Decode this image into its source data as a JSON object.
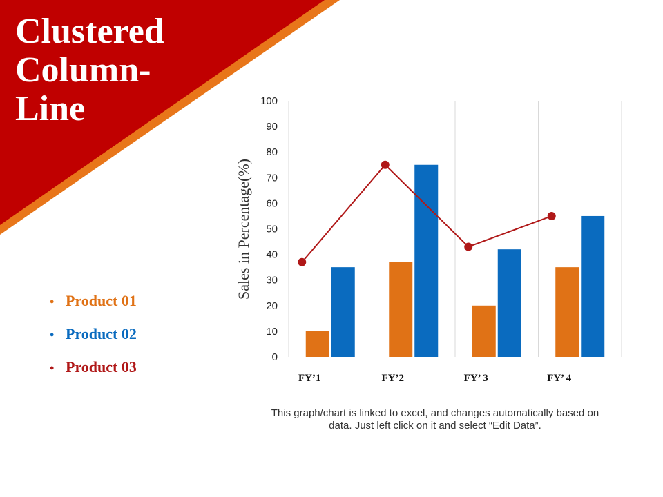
{
  "slide": {
    "title": "Clustered Column-Line",
    "note": "This graph/chart is linked to excel, and changes automatically based on data. Just left click on it and select “Edit Data”."
  },
  "colors": {
    "banner": "#c00000",
    "banner_stripe": "#e8761a",
    "product_01": "#e07216",
    "product_02": "#0a6bbf",
    "product_03": "#b01818",
    "gridline": "#d9d9d9"
  },
  "legend": [
    {
      "label": "Product 01",
      "color": "#e07216"
    },
    {
      "label": "Product 02",
      "color": "#0a6bbf"
    },
    {
      "label": "Product 03",
      "color": "#b01818"
    }
  ],
  "chart_data": {
    "type": "bar+line",
    "categories": [
      "FY’1",
      "FY’2",
      "FY’ 3",
      "FY’ 4"
    ],
    "series": [
      {
        "name": "Product 01",
        "type": "bar",
        "color": "#e07216",
        "values": [
          10,
          37,
          20,
          35
        ]
      },
      {
        "name": "Product 02",
        "type": "bar",
        "color": "#0a6bbf",
        "values": [
          35,
          75,
          42,
          55
        ]
      },
      {
        "name": "Product 03",
        "type": "line",
        "color": "#b01818",
        "values": [
          37,
          75,
          43,
          55
        ]
      }
    ],
    "ylabel": "Sales in Percentage(%)",
    "ylim": [
      0,
      100
    ],
    "yticks": [
      0,
      10,
      20,
      30,
      40,
      50,
      60,
      70,
      80,
      90,
      100
    ],
    "grid": "vertical category separators",
    "legend_position": "left"
  }
}
